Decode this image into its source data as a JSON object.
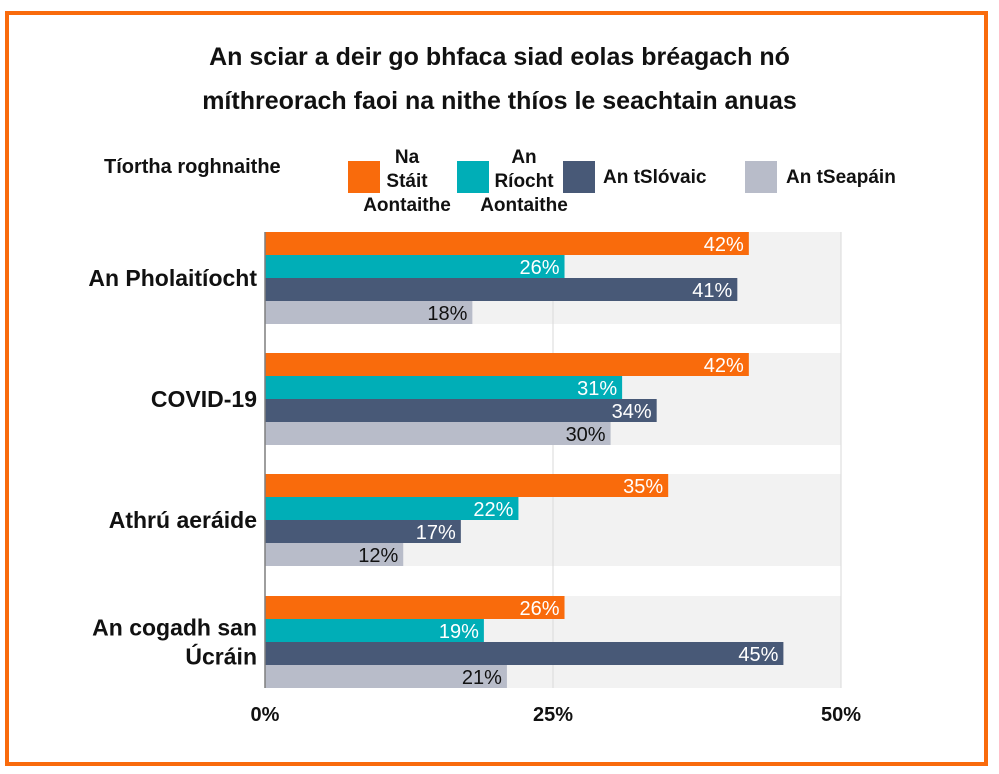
{
  "chart_data": {
    "type": "bar",
    "orientation": "horizontal",
    "title_line1": "An sciar a deir go bhfaca siad eolas bréagach nó",
    "title_line2": "míthreorach faoi na nithe thíos le seachtain anuas",
    "legend_title": "Tíortha roghnaithe",
    "categories": [
      "An Pholaitíocht",
      "COVID-19",
      "Athrú aeráide",
      "An cogadh san Úcráin"
    ],
    "category_lines": [
      [
        "An Pholaitíocht"
      ],
      [
        "COVID-19"
      ],
      [
        "Athrú aeráide"
      ],
      [
        "An cogadh san",
        "Úcráin"
      ]
    ],
    "series": [
      {
        "name": "Na Stáit Aontaithe",
        "name_lines": [
          "Na",
          "Stáit",
          "Aontaithe"
        ],
        "color": "#F96B0C",
        "label_color": "#ffffff",
        "values": [
          42,
          42,
          35,
          26
        ]
      },
      {
        "name": "An Ríocht Aontaithe",
        "name_lines": [
          "An",
          "Ríocht",
          "Aontaithe"
        ],
        "color": "#00AEB7",
        "label_color": "#ffffff",
        "values": [
          26,
          31,
          22,
          19
        ]
      },
      {
        "name": "An tSlóvaic",
        "name_lines": [
          "An tSlóvaic"
        ],
        "color": "#485977",
        "label_color": "#ffffff",
        "values": [
          41,
          34,
          17,
          45
        ]
      },
      {
        "name": "An tSeapáin",
        "name_lines": [
          "An tSeapáin"
        ],
        "color": "#B8BCC9",
        "label_color": "#111111",
        "values": [
          18,
          30,
          12,
          21
        ]
      }
    ],
    "value_suffix": "%",
    "xlim": [
      0,
      50
    ],
    "x_ticks": [
      0,
      25,
      50
    ],
    "x_tick_labels": [
      "0%",
      "25%",
      "50%"
    ],
    "legend_position": "top",
    "grid": true
  }
}
